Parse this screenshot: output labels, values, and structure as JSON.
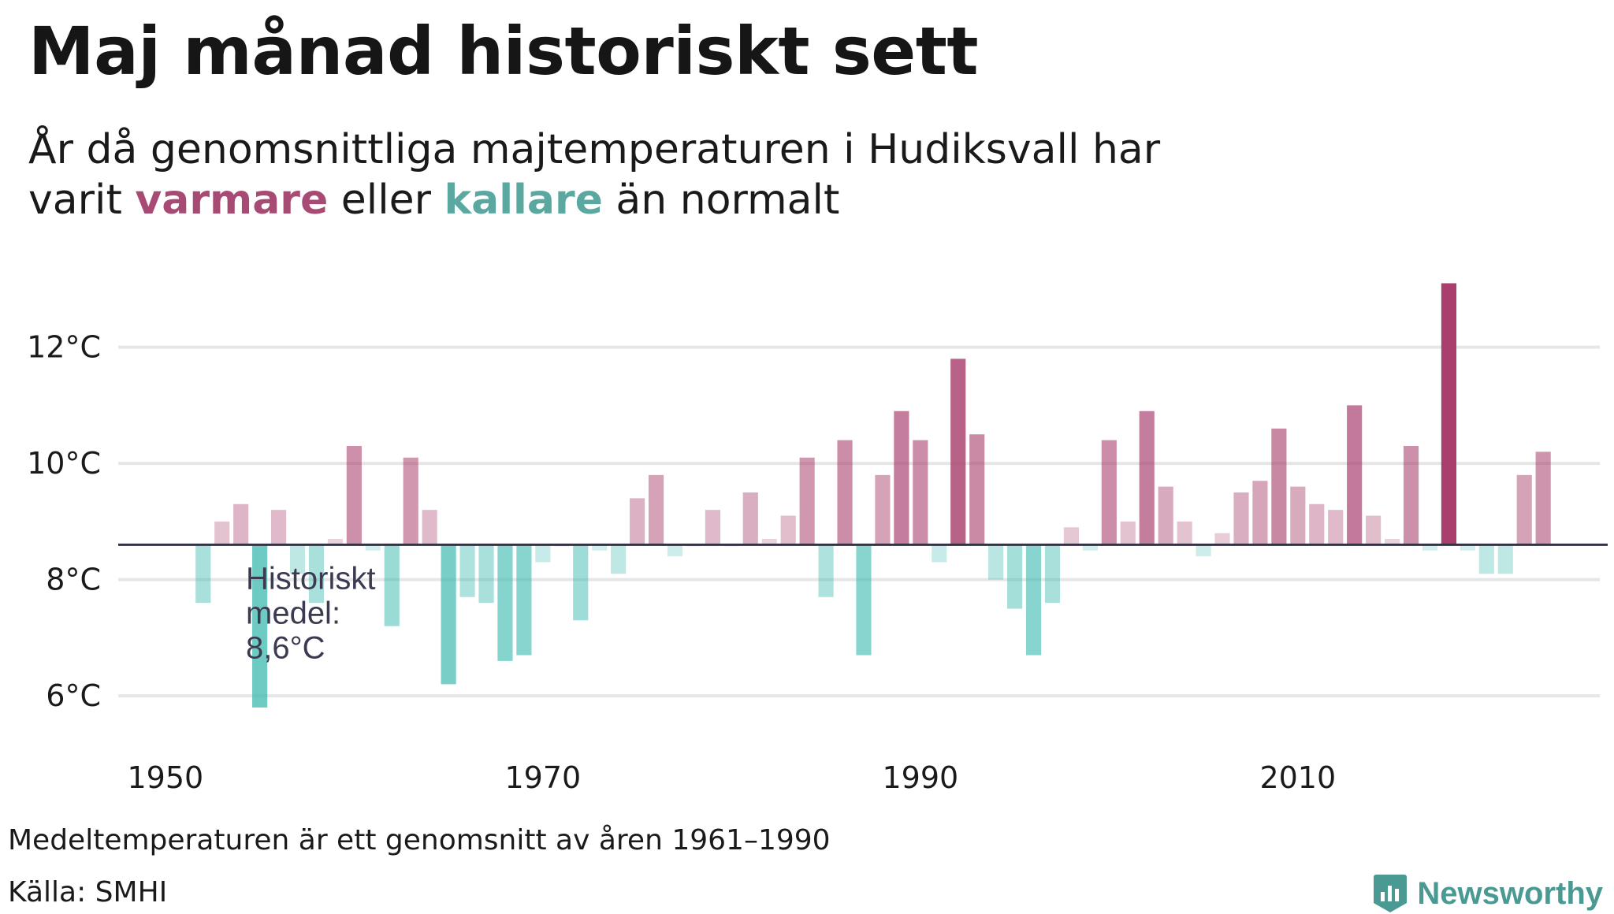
{
  "header": {
    "title": "Maj månad historiskt sett",
    "subtitle_part1": "År då genomsnittliga majtemperaturen i Hudiksvall har varit",
    "subtitle_warm": "varmare",
    "subtitle_mid": "eller",
    "subtitle_cold": "kallare",
    "subtitle_end": "än normalt"
  },
  "footer": {
    "note": "Medeltemperaturen är ett genomsnitt av åren 1961–1990",
    "source": "Källa: SMHI",
    "brand": "Newsworthy"
  },
  "colors": {
    "warm": "#a83f6c",
    "cold": "#3dbab0",
    "baseline": "#333344",
    "grid": "#e6e6e6"
  },
  "chart_data": {
    "type": "bar",
    "baseline": 8.6,
    "annotation": [
      "Historiskt",
      "medel:",
      "8,6°C"
    ],
    "ylim": [
      5.5,
      13.5
    ],
    "xlim": [
      1947.5,
      2026
    ],
    "yticks": [
      6,
      8,
      10,
      12
    ],
    "ytick_labels": [
      "6°C",
      "8°C",
      "10°C",
      "12°C"
    ],
    "xticks": [
      1950,
      1970,
      1990,
      2010
    ],
    "xtick_labels": [
      "1950",
      "1970",
      "1990",
      "2010"
    ],
    "grid": true,
    "x": [
      1952,
      1953,
      1954,
      1955,
      1956,
      1957,
      1958,
      1959,
      1960,
      1961,
      1962,
      1963,
      1964,
      1965,
      1966,
      1967,
      1968,
      1969,
      1970,
      1971,
      1972,
      1973,
      1974,
      1975,
      1976,
      1977,
      1978,
      1979,
      1980,
      1981,
      1982,
      1983,
      1984,
      1985,
      1986,
      1987,
      1988,
      1989,
      1990,
      1991,
      1992,
      1993,
      1994,
      1995,
      1996,
      1997,
      1998,
      1999,
      2000,
      2001,
      2002,
      2003,
      2004,
      2005,
      2006,
      2007,
      2008,
      2009,
      2010,
      2011,
      2012,
      2013,
      2014,
      2015,
      2016,
      2017,
      2018,
      2019,
      2020,
      2021,
      2022,
      2023
    ],
    "values": [
      7.6,
      9.0,
      9.3,
      5.8,
      9.2,
      8.1,
      7.6,
      8.7,
      10.3,
      8.5,
      7.2,
      10.1,
      9.2,
      6.2,
      7.7,
      7.6,
      6.6,
      6.7,
      8.3,
      8.6,
      7.3,
      8.5,
      8.1,
      9.4,
      9.8,
      8.4,
      8.6,
      9.2,
      8.6,
      9.5,
      8.7,
      9.1,
      10.1,
      7.7,
      10.4,
      6.7,
      9.8,
      10.9,
      10.4,
      8.3,
      11.8,
      10.5,
      8.0,
      7.5,
      6.7,
      7.6,
      8.9,
      8.5,
      10.4,
      9.0,
      10.9,
      9.6,
      9.0,
      8.4,
      8.8,
      9.5,
      9.7,
      10.6,
      9.6,
      9.3,
      9.2,
      11.0,
      9.1,
      8.7,
      10.3,
      8.5,
      13.1,
      8.5,
      8.1,
      8.1,
      9.8,
      10.2
    ]
  }
}
